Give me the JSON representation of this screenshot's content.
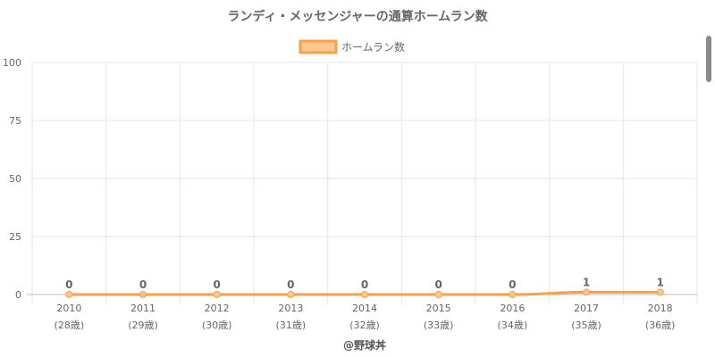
{
  "chart_data": {
    "type": "line",
    "title": "ランディ・メッセンジャーの通算ホームラン数",
    "legend_position": "top-center",
    "grid": true,
    "categories": [
      "2010",
      "2011",
      "2012",
      "2013",
      "2014",
      "2015",
      "2016",
      "2017",
      "2018"
    ],
    "age_labels": [
      "(28歳)",
      "(29歳)",
      "(30歳)",
      "(31歳)",
      "(32歳)",
      "(33歳)",
      "(34歳)",
      "(35歳)",
      "(36歳)"
    ],
    "ylim": [
      0,
      100
    ],
    "yticks": [
      0,
      25,
      50,
      75,
      100
    ],
    "series": [
      {
        "name": "ホームラン数",
        "values": [
          0,
          0,
          0,
          0,
          0,
          0,
          0,
          1,
          1
        ],
        "color": "#f7a04a",
        "fill": "#fbc98f"
      }
    ],
    "credit": "@野球丼"
  }
}
